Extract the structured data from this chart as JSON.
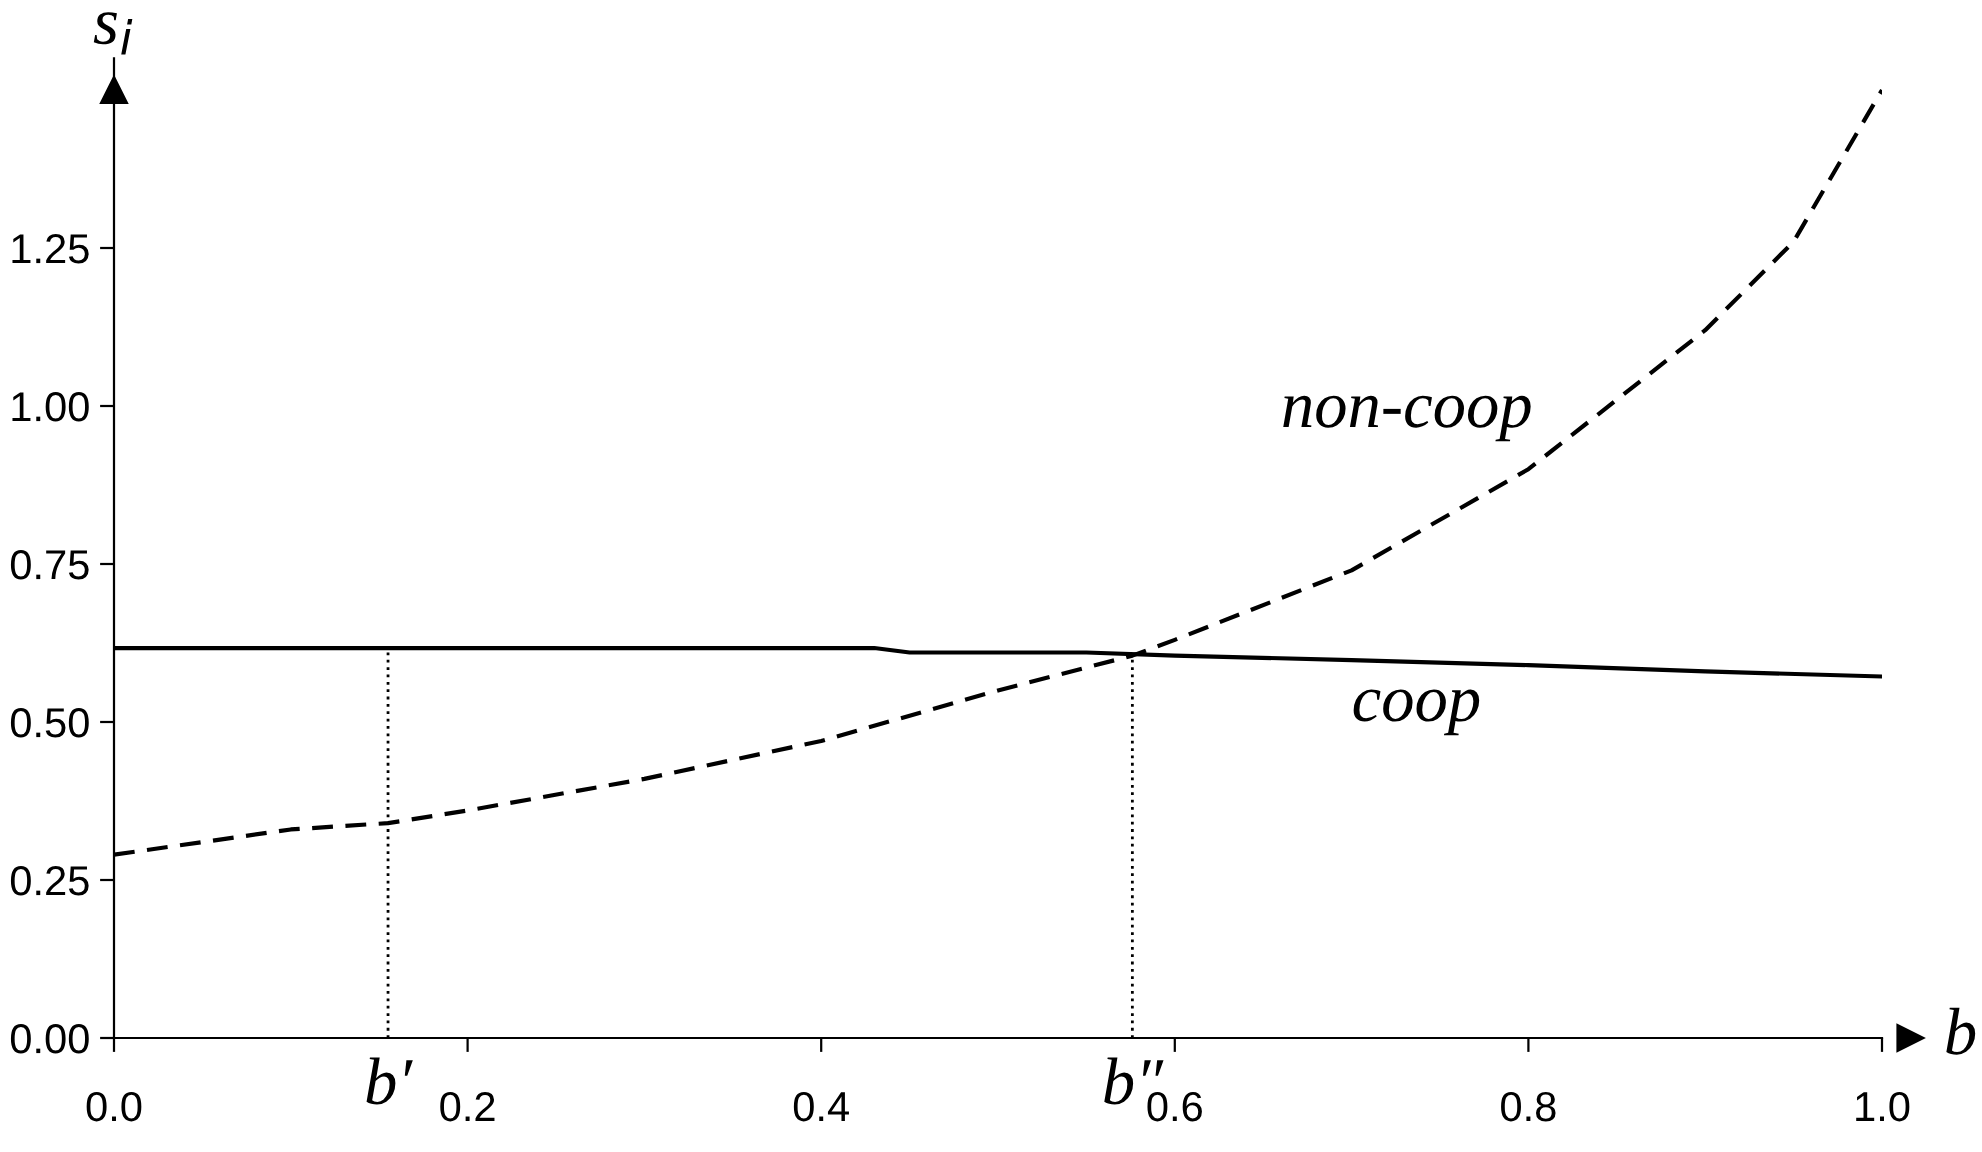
{
  "chart_data": {
    "type": "line",
    "xlabel": "b",
    "ylabel": "s$_{i}$",
    "xlim": [
      0,
      1.0
    ],
    "ylim": [
      0,
      1.55
    ],
    "xticks": [
      {
        "value": 0,
        "label": "0.0"
      },
      {
        "value": 0.2,
        "label": "0.2"
      },
      {
        "value": 0.4,
        "label": "0.4"
      },
      {
        "value": 0.6,
        "label": "0.6"
      },
      {
        "value": 0.8,
        "label": "0.8"
      },
      {
        "value": 1.0,
        "label": "1.0"
      }
    ],
    "yticks": [
      {
        "value": 0,
        "label": "0.00"
      },
      {
        "value": 0.25,
        "label": "0.25"
      },
      {
        "value": 0.5,
        "label": "0.50"
      },
      {
        "value": 0.75,
        "label": "0.75"
      },
      {
        "value": 1.0,
        "label": "1.00"
      },
      {
        "value": 1.25,
        "label": "1.25"
      }
    ],
    "grid": false,
    "legend": false,
    "series": [
      {
        "color": "#000000",
        "line_style": "solid",
        "x": [
          0,
          0.1,
          0.2,
          0.3,
          0.43,
          0.45,
          0.55,
          0.6,
          0.7,
          0.8,
          0.9,
          1.0
        ],
        "values": [
          0.617,
          0.617,
          0.617,
          0.617,
          0.617,
          0.61,
          0.61,
          0.605,
          0.598,
          0.59,
          0.58,
          0.572
        ]
      },
      {
        "color": "#000000",
        "line_style": "dashed",
        "x": [
          0,
          0.1,
          0.155,
          0.2,
          0.3,
          0.4,
          0.5,
          0.576,
          0.6,
          0.7,
          0.8,
          0.9,
          0.95,
          1.0
        ],
        "values": [
          0.29,
          0.33,
          0.34,
          0.36,
          0.41,
          0.47,
          0.55,
          0.605,
          0.63,
          0.74,
          0.9,
          1.12,
          1.26,
          1.5
        ]
      }
    ],
    "ref_lines": [
      {
        "axis": "x",
        "value": 0.155,
        "label": "b′",
        "line_style": "dotted",
        "color": "#000000"
      },
      {
        "axis": "x",
        "value": 0.576,
        "label": "b″",
        "line_style": "dotted",
        "color": "#000000"
      }
    ],
    "annotations": [
      "non-coop",
      "coop"
    ]
  }
}
